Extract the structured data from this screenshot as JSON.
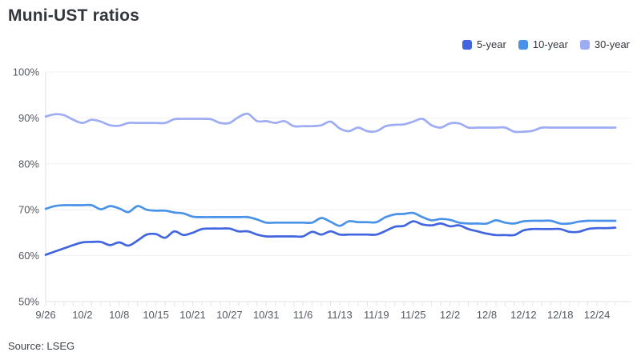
{
  "title": "Muni-UST ratios",
  "source": "Source: LSEG",
  "legend": [
    {
      "label": "5-year",
      "color": "#4165e0"
    },
    {
      "label": "10-year",
      "color": "#4a92e8"
    },
    {
      "label": "30-year",
      "color": "#9dacf3"
    }
  ],
  "colors": {
    "grid": "#f1f1f3",
    "axis": "#e2e2e6",
    "tick": "#e6e6ea",
    "axis_text": "#54585f"
  },
  "chart_data": {
    "type": "line",
    "title": "Muni-UST ratios",
    "xlabel": "",
    "ylabel": "",
    "ylim": [
      50,
      100
    ],
    "y_ticks": [
      "50%",
      "60%",
      "70%",
      "80%",
      "90%",
      "100%"
    ],
    "grid": "horizontal-faint",
    "legend_position": "top-right",
    "x_labels": [
      "9/26",
      "10/2",
      "10/8",
      "10/15",
      "10/21",
      "10/27",
      "10/31",
      "11/6",
      "11/13",
      "11/19",
      "11/25",
      "12/2",
      "12/8",
      "12/12",
      "12/18",
      "12/24"
    ],
    "x_label_every": 4,
    "series": [
      {
        "name": "5-year",
        "color": "#4165e0",
        "values": [
          60.2,
          60.9,
          61.6,
          62.3,
          62.9,
          63.0,
          63.0,
          62.3,
          62.9,
          62.2,
          63.3,
          64.6,
          64.7,
          63.9,
          65.3,
          64.5,
          65.0,
          65.8,
          65.9,
          65.9,
          65.9,
          65.3,
          65.3,
          64.6,
          64.2,
          64.2,
          64.2,
          64.2,
          64.2,
          65.2,
          64.6,
          65.3,
          64.6,
          64.6,
          64.6,
          64.6,
          64.6,
          65.4,
          66.3,
          66.5,
          67.5,
          66.8,
          66.6,
          67.0,
          66.4,
          66.6,
          65.8,
          65.3,
          64.8,
          64.5,
          64.5,
          64.5,
          65.5,
          65.8,
          65.8,
          65.8,
          65.8,
          65.2,
          65.2,
          65.8,
          66.0,
          66.0,
          66.1
        ]
      },
      {
        "name": "10-year",
        "color": "#4a92e8",
        "values": [
          70.2,
          70.8,
          71.0,
          71.0,
          71.0,
          71.0,
          70.1,
          70.8,
          70.3,
          69.5,
          70.8,
          70.0,
          69.8,
          69.8,
          69.4,
          69.2,
          68.5,
          68.4,
          68.4,
          68.4,
          68.4,
          68.4,
          68.4,
          67.9,
          67.2,
          67.2,
          67.2,
          67.2,
          67.2,
          67.2,
          68.2,
          67.4,
          66.5,
          67.5,
          67.3,
          67.3,
          67.3,
          68.4,
          69.0,
          69.1,
          69.3,
          68.4,
          67.7,
          68.0,
          67.8,
          67.2,
          67.0,
          67.0,
          67.0,
          67.7,
          67.2,
          67.0,
          67.5,
          67.6,
          67.6,
          67.6,
          67.0,
          67.0,
          67.4,
          67.6,
          67.6,
          67.6,
          67.6
        ]
      },
      {
        "name": "30-year",
        "color": "#9dacf3",
        "values": [
          90.3,
          90.8,
          90.6,
          89.6,
          88.9,
          89.6,
          89.2,
          88.4,
          88.3,
          88.9,
          88.9,
          88.9,
          88.9,
          88.9,
          89.7,
          89.8,
          89.8,
          89.8,
          89.7,
          88.9,
          88.9,
          90.2,
          90.9,
          89.3,
          89.3,
          88.9,
          89.3,
          88.2,
          88.2,
          88.2,
          88.4,
          89.2,
          87.7,
          87.1,
          87.9,
          87.1,
          87.1,
          88.2,
          88.5,
          88.6,
          89.2,
          89.8,
          88.4,
          87.9,
          88.8,
          88.8,
          87.9,
          87.9,
          87.9,
          87.9,
          87.9,
          87.0,
          87.0,
          87.2,
          87.9,
          87.9,
          87.9,
          87.9,
          87.9,
          87.9,
          87.9,
          87.9,
          87.9
        ]
      }
    ]
  }
}
